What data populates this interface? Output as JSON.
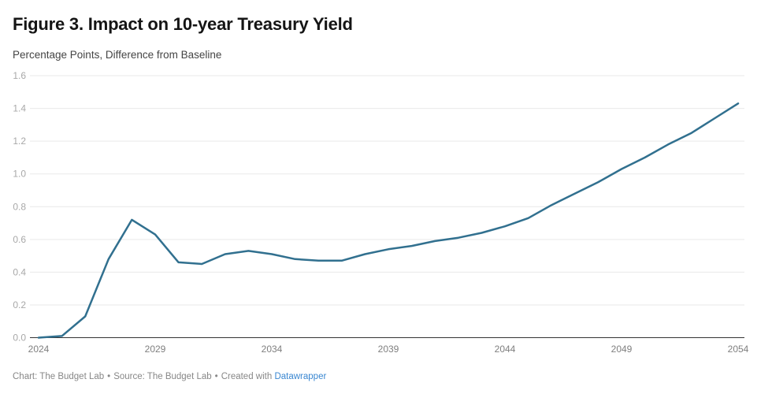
{
  "chart_data": {
    "type": "line",
    "title": "Figure 3. Impact on 10-year Treasury Yield",
    "subtitle": "Percentage Points, Difference from Baseline",
    "xlabel": "",
    "ylabel": "Percentage Points, Difference from Baseline",
    "x": [
      2024,
      2025,
      2026,
      2027,
      2028,
      2029,
      2030,
      2031,
      2032,
      2033,
      2034,
      2035,
      2036,
      2037,
      2038,
      2039,
      2040,
      2041,
      2042,
      2043,
      2044,
      2045,
      2046,
      2047,
      2048,
      2049,
      2050,
      2051,
      2052,
      2053,
      2054
    ],
    "values": [
      0.0,
      0.01,
      0.13,
      0.48,
      0.72,
      0.63,
      0.46,
      0.45,
      0.51,
      0.53,
      0.51,
      0.48,
      0.47,
      0.47,
      0.51,
      0.54,
      0.56,
      0.59,
      0.61,
      0.64,
      0.68,
      0.73,
      0.81,
      0.88,
      0.95,
      1.03,
      1.1,
      1.18,
      1.25,
      1.34,
      1.43
    ],
    "x_ticks": [
      2024,
      2029,
      2034,
      2039,
      2044,
      2049,
      2054
    ],
    "y_ticks": [
      "0.0",
      "0.2",
      "0.4",
      "0.6",
      "0.8",
      "1.0",
      "1.2",
      "1.4",
      "1.6"
    ],
    "xlim": [
      2024,
      2054
    ],
    "ylim": [
      0,
      1.6
    ],
    "grid": "horizontal",
    "legend": "none",
    "line_color": "#31708f",
    "axis_color": "#333333",
    "grid_color": "#e9e9e9",
    "y_tick_color": "#a8a8a8",
    "x_tick_color": "#7f7f7f"
  },
  "footer": {
    "chart_credit": "Chart: The Budget Lab",
    "source_credit": "Source: The Budget Lab",
    "created_with": "Created with",
    "link_label": "Datawrapper",
    "separator": "•"
  }
}
